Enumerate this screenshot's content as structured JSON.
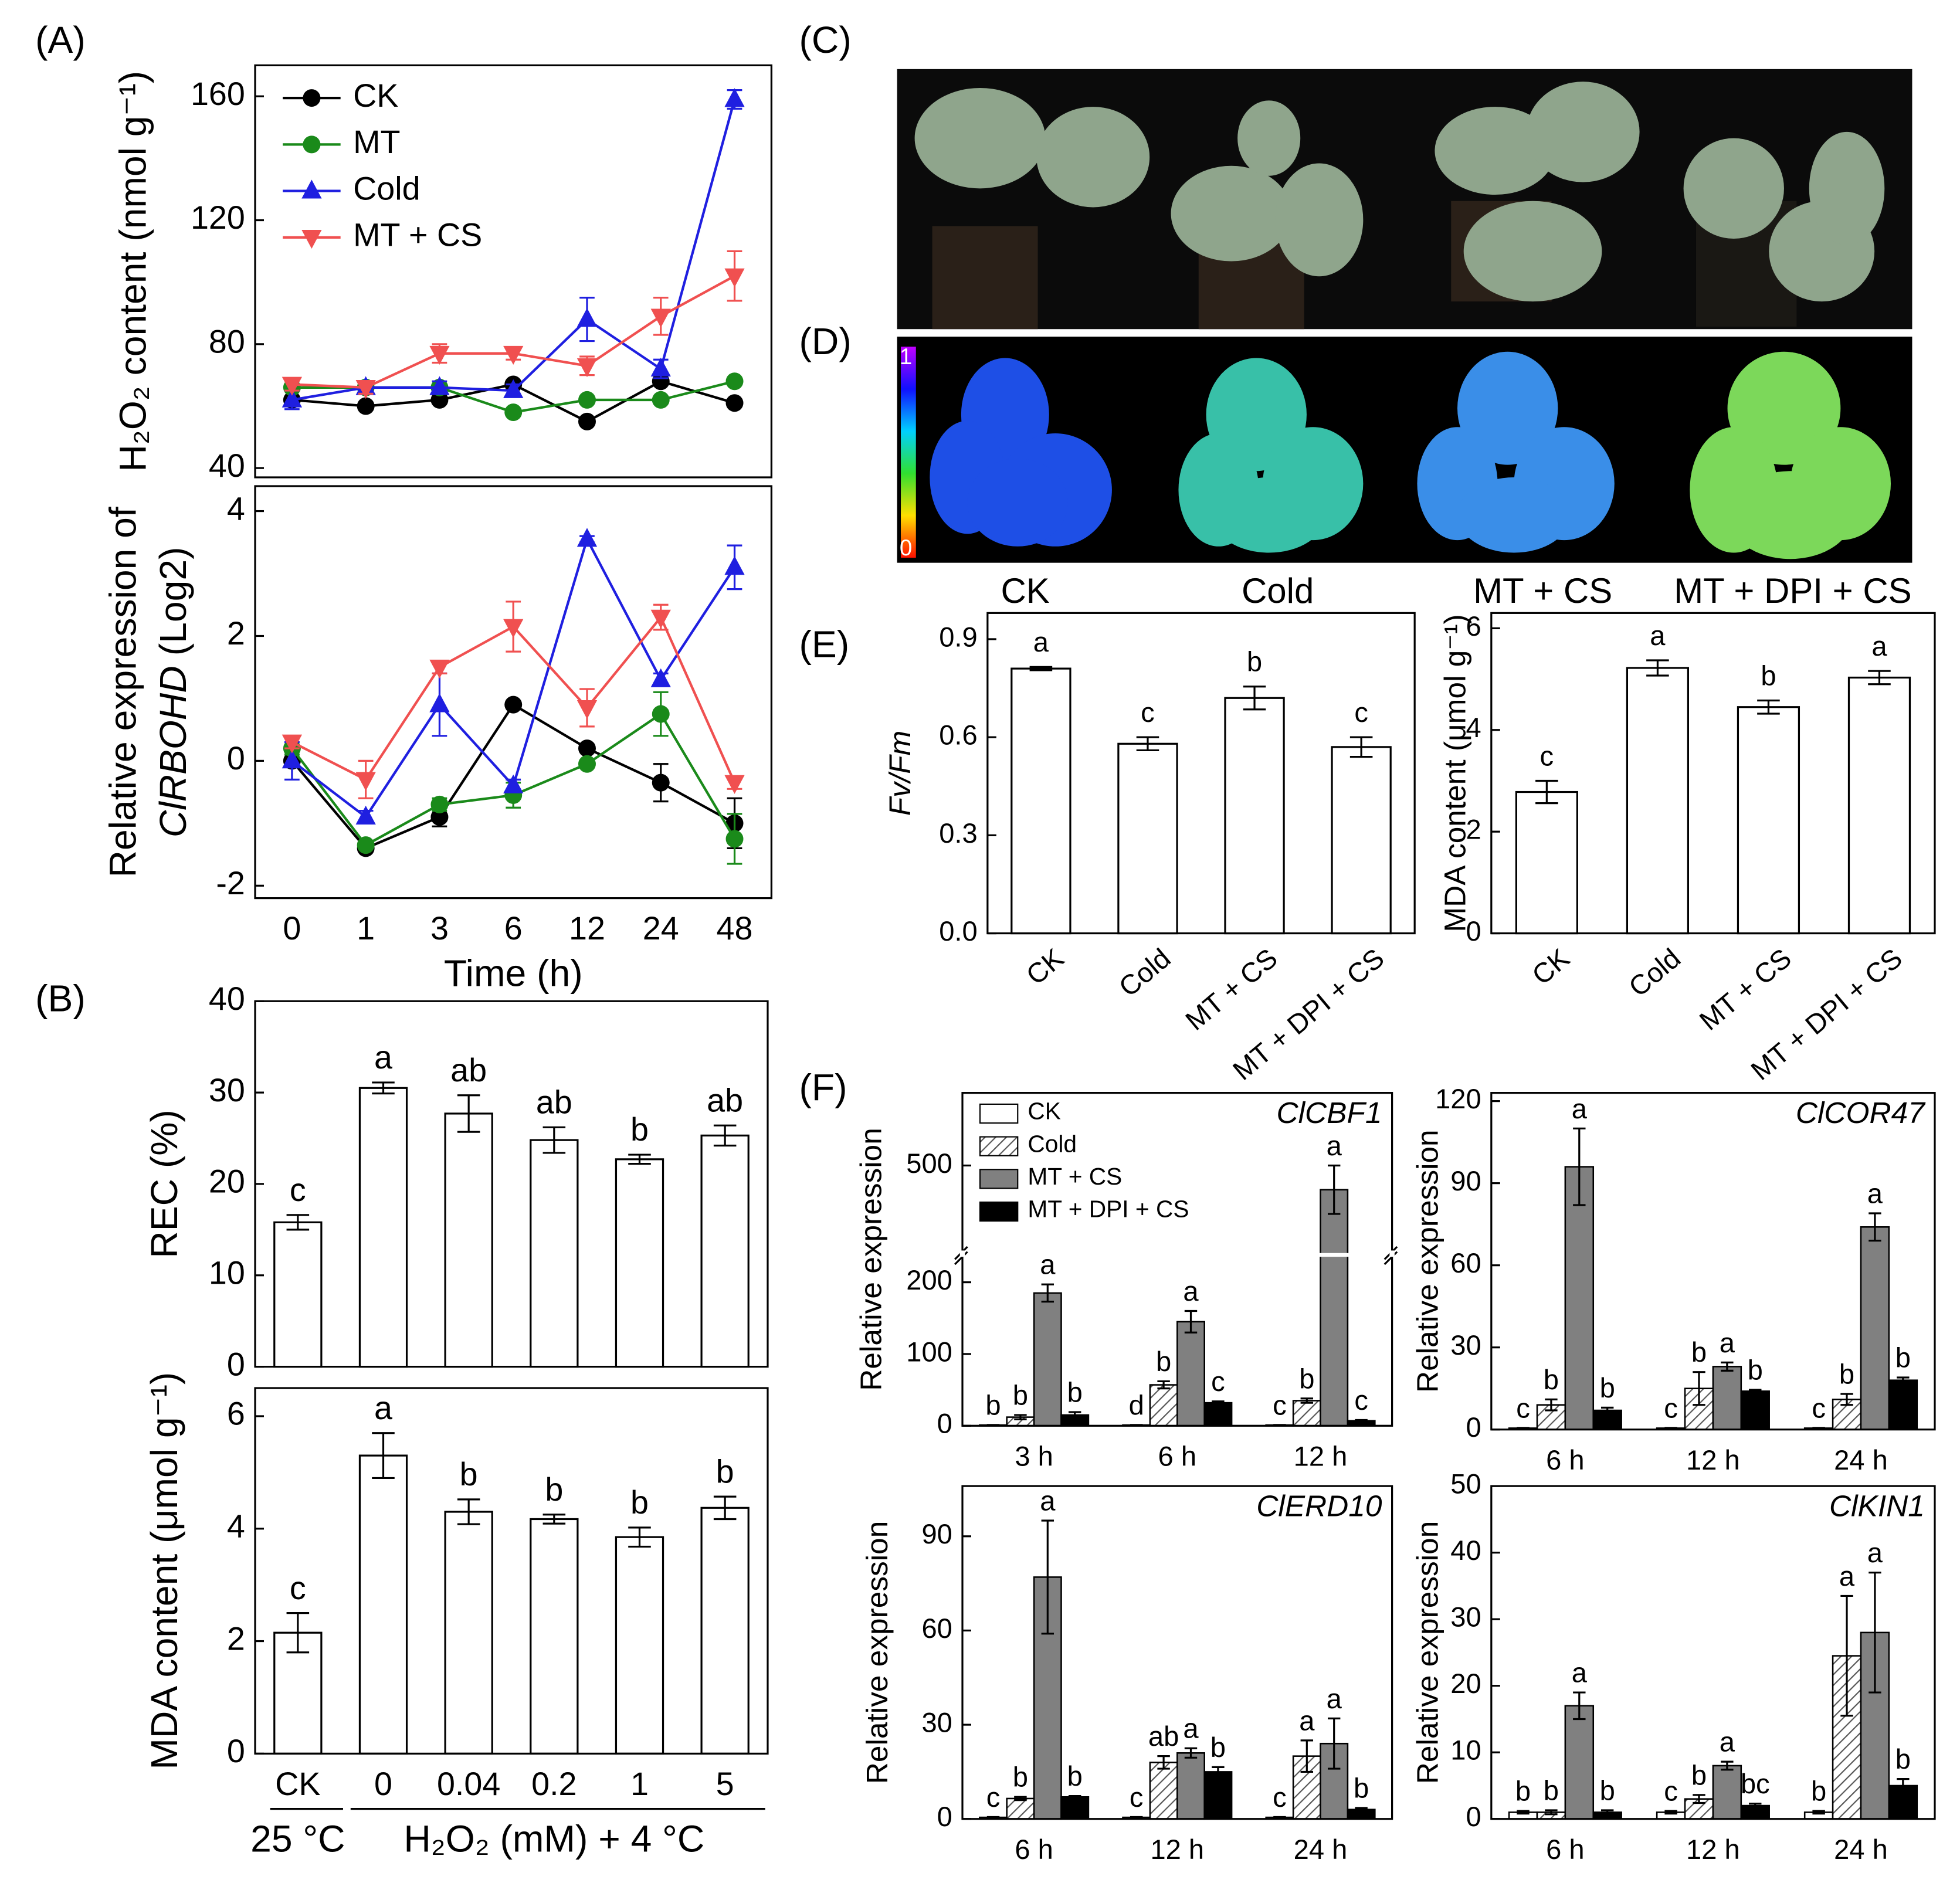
{
  "panel_labels": [
    "(A)",
    "(B)",
    "(C)",
    "(D)",
    "(E)",
    "(F)"
  ],
  "photo_labels": [
    "CK",
    "Cold",
    "MT + CS",
    "MT + DPI + CS"
  ],
  "colorbar": [
    "1",
    "0"
  ],
  "chart_data": [
    {
      "type": "line",
      "ylabel": "H₂O₂ content (nmol g⁻¹)",
      "categories": [
        null,
        null,
        null,
        null,
        null,
        null,
        null
      ],
      "ylim": [
        37,
        170
      ],
      "yticks": [
        40,
        80,
        120,
        160
      ],
      "legend": "upper left",
      "series": [
        {
          "name": "CK",
          "color": "#000000",
          "marker": "circle",
          "values": [
            62,
            60,
            62,
            67,
            55,
            68,
            61
          ]
        },
        {
          "name": "MT",
          "color": "#1a8a1a",
          "marker": "circle",
          "values": [
            66,
            66,
            66,
            58,
            62,
            62,
            68
          ]
        },
        {
          "name": "Cold",
          "color": "#1f1fe0",
          "marker": "triangle-up",
          "values": [
            62,
            66,
            66,
            65,
            88,
            72,
            159
          ],
          "errors": [
            3,
            2,
            2,
            2,
            7,
            3,
            3
          ]
        },
        {
          "name": "MT + CS",
          "color": "#f05050",
          "marker": "triangle-down",
          "values": [
            67,
            66,
            77,
            77,
            73,
            89,
            102
          ],
          "errors": [
            2,
            2,
            3,
            2,
            3,
            6,
            8
          ]
        }
      ]
    },
    {
      "type": "line",
      "ylabel": "Relative expression of",
      "gene": "ClRBOHD",
      "ylabel_unit": "(Log2)",
      "xlabel": "Time (h)",
      "categories": [
        "0",
        "1",
        "3",
        "6",
        "12",
        "24",
        "48"
      ],
      "ylim": [
        -2.2,
        4.4
      ],
      "yticks": [
        -2,
        0,
        2,
        4
      ],
      "series": [
        {
          "color": "#000000",
          "marker": "circle",
          "values": [
            0,
            -1.4,
            -0.9,
            0.9,
            0.2,
            -0.35,
            -1.0
          ],
          "errors": [
            0.1,
            0.05,
            0.15,
            0.05,
            0.05,
            0.3,
            0.4
          ]
        },
        {
          "color": "#1a8a1a",
          "marker": "circle",
          "values": [
            0.2,
            -1.35,
            -0.7,
            -0.55,
            -0.05,
            0.75,
            -1.25
          ],
          "errors": [
            0.1,
            0.05,
            0.1,
            0.2,
            0.05,
            0.35,
            0.4
          ]
        },
        {
          "color": "#1f1fe0",
          "marker": "triangle-up",
          "values": [
            0,
            -0.9,
            0.9,
            -0.4,
            3.55,
            1.3,
            3.1
          ],
          "errors": [
            0.3,
            0.1,
            0.5,
            0.1,
            0.05,
            0.1,
            0.35
          ]
        },
        {
          "color": "#f05050",
          "marker": "triangle-down",
          "values": [
            0.3,
            -0.3,
            1.5,
            2.15,
            0.85,
            2.3,
            -0.35
          ],
          "errors": [
            0.1,
            0.3,
            0.1,
            0.4,
            0.3,
            0.2,
            0.1
          ]
        }
      ]
    },
    {
      "type": "bar",
      "ylabel": "REC (%)",
      "categories": [
        null,
        null,
        null,
        null,
        null,
        null
      ],
      "values": [
        15.8,
        30.5,
        27.7,
        24.8,
        22.7,
        25.3
      ],
      "errors": [
        0.8,
        0.6,
        2.0,
        1.4,
        0.5,
        1.1
      ],
      "letters": [
        "c",
        "a",
        "ab",
        "ab",
        "b",
        "ab"
      ],
      "color": "#ffffff",
      "ylim": [
        0,
        40
      ],
      "yticks": [
        0,
        10,
        20,
        30,
        40
      ]
    },
    {
      "type": "bar",
      "ylabel": "MDA content (μmol g⁻¹)",
      "categories": [
        "CK",
        "0",
        "0.04",
        "0.2",
        "1",
        "5"
      ],
      "group_labels": [
        "25 °C",
        "H₂O₂ (mM) + 4 °C"
      ],
      "values": [
        2.15,
        5.3,
        4.3,
        4.17,
        3.85,
        4.37
      ],
      "errors": [
        0.35,
        0.4,
        0.22,
        0.08,
        0.17,
        0.2
      ],
      "letters": [
        "c",
        "a",
        "b",
        "b",
        "b",
        "b"
      ],
      "color": "#ffffff",
      "ylim": [
        0,
        6.5
      ],
      "yticks": [
        0,
        2,
        4,
        6
      ]
    },
    {
      "type": "bar",
      "ylabel": "Fv/Fm",
      "categories": [
        "CK",
        "Cold",
        "MT + CS",
        "MT + DPI + CS"
      ],
      "values": [
        0.81,
        0.58,
        0.72,
        0.57
      ],
      "errors": [
        0.005,
        0.02,
        0.035,
        0.03
      ],
      "letters": [
        "a",
        "c",
        "b",
        "c"
      ],
      "color": "#ffffff",
      "ylim": [
        0,
        0.98
      ],
      "yticks": [
        {
          "value": 0,
          "label": "0.0"
        },
        0.3,
        0.6,
        0.9
      ]
    },
    {
      "type": "bar",
      "ylabel": "MDA content (μmol g⁻¹)",
      "categories": [
        "CK",
        "Cold",
        "MT + CS",
        "MT + DPI + CS"
      ],
      "values": [
        2.78,
        5.22,
        4.45,
        5.03
      ],
      "errors": [
        0.22,
        0.15,
        0.13,
        0.13
      ],
      "letters": [
        "c",
        "a",
        "b",
        "a"
      ],
      "color": "#ffffff",
      "ylim": [
        0,
        6.3
      ],
      "yticks": [
        0,
        2,
        4,
        6
      ]
    },
    {
      "type": "bar",
      "ylabel": "Relative expression",
      "gene": "ClCBF1",
      "categories": [
        "3 h",
        "6 h",
        "12 h"
      ],
      "ylim": [
        0,
        680
      ],
      "ybreak": [
        225,
        280
      ],
      "yticks": [
        0,
        100,
        200,
        500
      ],
      "legend": "upper left",
      "series": [
        {
          "name": "CK",
          "color": "#ffffff",
          "values": [
            1,
            1,
            1
          ],
          "errors": [
            0.2,
            0.2,
            0.2
          ],
          "letters": [
            "b",
            "d",
            "c"
          ]
        },
        {
          "name": "Cold",
          "color": "#ffffff",
          "pattern": "hatch",
          "values": [
            12,
            57,
            35
          ],
          "errors": [
            3,
            5,
            3
          ],
          "letters": [
            "b",
            "b",
            "b"
          ]
        },
        {
          "name": "MT + CS",
          "color": "#808080",
          "values": [
            185,
            145,
            440
          ],
          "errors": [
            12,
            15,
            60
          ],
          "letters": [
            "a",
            "a",
            "a"
          ]
        },
        {
          "name": "MT + DPI + CS",
          "color": "#000000",
          "values": [
            15,
            32,
            7
          ],
          "errors": [
            4,
            2,
            1
          ],
          "letters": [
            "b",
            "c",
            "c"
          ]
        }
      ]
    },
    {
      "type": "bar",
      "ylabel": "Relative expression",
      "gene": "ClCOR47",
      "categories": [
        "6 h",
        "12 h",
        "24 h"
      ],
      "ylim": [
        0,
        123
      ],
      "yticks": [
        0,
        30,
        60,
        90,
        120
      ],
      "series": [
        {
          "color": "#ffffff",
          "values": [
            0.5,
            0.5,
            0.5
          ],
          "errors": [
            0.1,
            0.1,
            0.1
          ],
          "letters": [
            "c",
            "c",
            "c"
          ]
        },
        {
          "color": "#ffffff",
          "pattern": "hatch",
          "values": [
            9,
            15,
            11
          ],
          "errors": [
            2,
            6,
            2
          ],
          "letters": [
            "b",
            "b",
            "b"
          ]
        },
        {
          "color": "#808080",
          "values": [
            96,
            23,
            74
          ],
          "errors": [
            14,
            1.5,
            5
          ],
          "letters": [
            "a",
            "a",
            "a"
          ]
        },
        {
          "color": "#000000",
          "values": [
            7,
            14,
            18
          ],
          "errors": [
            1,
            0.5,
            1
          ],
          "letters": [
            "b",
            "b",
            "b"
          ]
        }
      ]
    },
    {
      "type": "bar",
      "ylabel": "Relative expression",
      "gene": "ClERD10",
      "categories": [
        "6 h",
        "12 h",
        "24 h"
      ],
      "ylim": [
        0,
        106
      ],
      "yticks": [
        0,
        30,
        60,
        90
      ],
      "series": [
        {
          "color": "#ffffff",
          "values": [
            0.5,
            0.5,
            0.5
          ],
          "errors": [
            0.1,
            0.1,
            0.1
          ],
          "letters": [
            "c",
            "c",
            "c"
          ]
        },
        {
          "color": "#ffffff",
          "pattern": "hatch",
          "values": [
            6.5,
            18,
            20
          ],
          "errors": [
            0.5,
            2,
            5
          ],
          "letters": [
            "b",
            "ab",
            "a"
          ]
        },
        {
          "color": "#808080",
          "values": [
            77,
            21,
            24
          ],
          "errors": [
            18,
            1.5,
            8
          ],
          "letters": [
            "a",
            "a",
            "a"
          ]
        },
        {
          "color": "#000000",
          "values": [
            7,
            15,
            3
          ],
          "errors": [
            0.3,
            1.5,
            0.5
          ],
          "letters": [
            "b",
            "b",
            "b"
          ]
        }
      ]
    },
    {
      "type": "bar",
      "ylabel": "Relative expression",
      "gene": "ClKIN1",
      "categories": [
        "6 h",
        "12 h",
        "24 h"
      ],
      "ylim": [
        0,
        50
      ],
      "yticks": [
        0,
        10,
        20,
        30,
        40,
        50
      ],
      "series": [
        {
          "color": "#ffffff",
          "values": [
            1,
            1,
            1
          ],
          "errors": [
            0.2,
            0.2,
            0.2
          ],
          "letters": [
            "b",
            "c",
            "b"
          ]
        },
        {
          "color": "#ffffff",
          "pattern": "hatch",
          "values": [
            1,
            3,
            24.5
          ],
          "errors": [
            0.3,
            0.6,
            9
          ],
          "letters": [
            "b",
            "b",
            "a"
          ]
        },
        {
          "color": "#808080",
          "values": [
            17,
            8,
            28
          ],
          "errors": [
            2,
            0.6,
            9
          ],
          "letters": [
            "a",
            "a",
            "a"
          ]
        },
        {
          "color": "#000000",
          "values": [
            1,
            2,
            5
          ],
          "errors": [
            0.3,
            0.3,
            1
          ],
          "letters": [
            "b",
            "bc",
            "b"
          ]
        }
      ]
    }
  ]
}
